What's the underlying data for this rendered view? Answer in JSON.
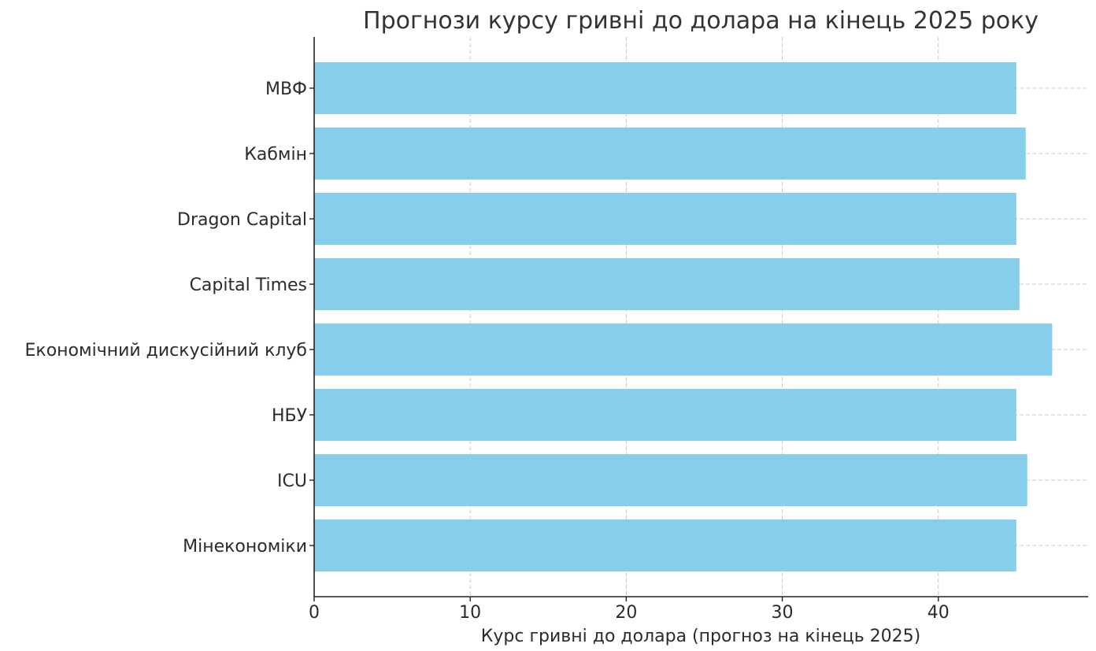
{
  "chart_data": {
    "type": "bar",
    "orientation": "horizontal",
    "title": "Прогнози курсу гривні до долара на кінець 2025 року",
    "xlabel": "Курс гривні до долара (прогноз на кінець 2025)",
    "ylabel": "",
    "categories": [
      "МВФ",
      "Кабмін",
      "Dragon Capital",
      "Capital Times",
      "Економічний дискусійний клуб",
      "НБУ",
      "ICU",
      "Мінекономіки"
    ],
    "values": [
      45.0,
      45.6,
      45.0,
      45.2,
      47.3,
      45.0,
      45.7,
      45.0
    ],
    "xlim": [
      0,
      49.6
    ],
    "xticks": [
      0,
      10,
      20,
      30,
      40
    ],
    "grid": true,
    "bar_color": "#87CEEB",
    "legend": false
  }
}
